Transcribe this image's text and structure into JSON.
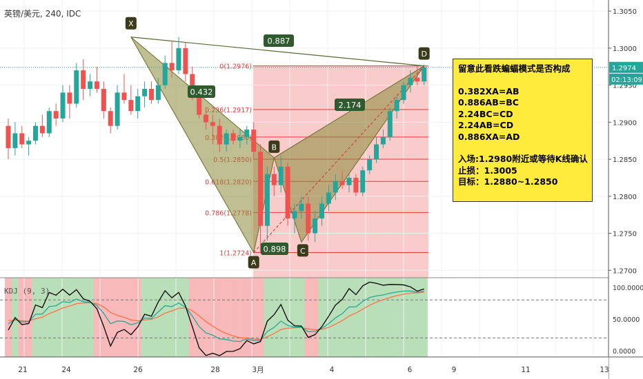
{
  "header": {
    "symbol": "英镑/美元",
    "interval": "240",
    "source": "IDC"
  },
  "price_axis": {
    "ticks": [
      "1.3050",
      "1.3000",
      "1.2950",
      "1.2900",
      "1.2850",
      "1.2800",
      "1.2750",
      "1.2700"
    ],
    "current_price": "1.2974",
    "countdown": "02:13:09"
  },
  "kdj_axis": {
    "ticks": [
      "100.0000",
      "50.0000",
      "0.0000"
    ],
    "label": "KDJ (9, 3)"
  },
  "time_axis": {
    "labels": [
      "21",
      "24",
      "26",
      "28",
      "3月",
      "4",
      "6",
      "9",
      "11",
      "13"
    ]
  },
  "pattern": {
    "points": {
      "X": "X",
      "A": "A",
      "B": "B",
      "C": "C",
      "D": "D"
    },
    "ratios": {
      "xd": "0.887",
      "xab": "0.432",
      "abc": "0.898",
      "bcd": "2.174"
    }
  },
  "fib_levels": [
    {
      "label": "0(1.2976)",
      "price": 1.2976
    },
    {
      "label": "0.236(1.2917)",
      "price": 1.2917
    },
    {
      "label": "0.382(1.2880)",
      "price": 1.288
    },
    {
      "label": "0.5(1.2850)",
      "price": 1.285
    },
    {
      "label": "0.618(1.2820)",
      "price": 1.282
    },
    {
      "label": "0.786(1.2778)",
      "price": 1.2778
    },
    {
      "label": "1(1.2724)",
      "price": 1.2724
    }
  ],
  "note": {
    "title": "留意此看跌蝙蝠模式是否构成",
    "rules": [
      "0.382XA=AB",
      "0.886AB=BC",
      "2.24BC=CD",
      "2.24AB=CD",
      "0.886XA=AD"
    ],
    "entry": "入场:1.2980附近或等待K线确认",
    "stop": "止损：1.3005",
    "target": "目标：1.2880~1.2850"
  },
  "colors": {
    "up": "#26a69a",
    "down": "#ef5350",
    "pattern_fill": "#8a8a3a",
    "fib_zone": "#f7b9b9",
    "kdj_green": "#b9dfb9",
    "kdj_red": "#f7b9b9",
    "k_line": "#000000",
    "d_line": "#26a69a",
    "j_line": "#ff7043"
  },
  "chart_data": {
    "type": "candlestick",
    "series": [
      {
        "name": "英镑/美元",
        "ohlc": [
          [
            1.2895,
            1.2905,
            1.285,
            1.2865
          ],
          [
            1.2865,
            1.29,
            1.2855,
            1.2885
          ],
          [
            1.2885,
            1.2895,
            1.2865,
            1.287
          ],
          [
            1.287,
            1.288,
            1.2855,
            1.2875
          ],
          [
            1.2875,
            1.29,
            1.287,
            1.2895
          ],
          [
            1.2895,
            1.291,
            1.288,
            1.2885
          ],
          [
            1.2885,
            1.292,
            1.288,
            1.2915
          ],
          [
            1.2915,
            1.2925,
            1.2895,
            1.2905
          ],
          [
            1.2905,
            1.295,
            1.29,
            1.294
          ],
          [
            1.294,
            1.295,
            1.2905,
            1.2925
          ],
          [
            1.2925,
            1.298,
            1.292,
            1.297
          ],
          [
            1.297,
            1.2985,
            1.293,
            1.2945
          ],
          [
            1.2945,
            1.2965,
            1.2935,
            1.2955
          ],
          [
            1.2955,
            1.2975,
            1.294,
            1.2945
          ],
          [
            1.2945,
            1.2955,
            1.2905,
            1.2915
          ],
          [
            1.2915,
            1.292,
            1.2885,
            1.2895
          ],
          [
            1.2895,
            1.295,
            1.289,
            1.294
          ],
          [
            1.294,
            1.2965,
            1.2925,
            1.293
          ],
          [
            1.293,
            1.295,
            1.291,
            1.2915
          ],
          [
            1.2915,
            1.2945,
            1.2905,
            1.2935
          ],
          [
            1.2935,
            1.2955,
            1.292,
            1.2945
          ],
          [
            1.2945,
            1.2955,
            1.2925,
            1.293
          ],
          [
            1.293,
            1.296,
            1.2925,
            1.295
          ],
          [
            1.295,
            1.299,
            1.2945,
            1.298
          ],
          [
            1.298,
            1.301,
            1.296,
            1.297
          ],
          [
            1.297,
            1.3015,
            1.2965,
            1.3
          ],
          [
            1.3,
            1.3008,
            1.2955,
            1.2965
          ],
          [
            1.2965,
            1.2975,
            1.293,
            1.2935
          ],
          [
            1.2935,
            1.2945,
            1.2905,
            1.291
          ],
          [
            1.291,
            1.292,
            1.289,
            1.29
          ],
          [
            1.29,
            1.291,
            1.287,
            1.2895
          ],
          [
            1.2895,
            1.2905,
            1.286,
            1.287
          ],
          [
            1.287,
            1.289,
            1.286,
            1.2885
          ],
          [
            1.2885,
            1.289,
            1.287,
            1.2875
          ],
          [
            1.2875,
            1.289,
            1.2865,
            1.288
          ],
          [
            1.288,
            1.2895,
            1.287,
            1.289
          ],
          [
            1.289,
            1.29,
            1.285,
            1.286
          ],
          [
            1.286,
            1.287,
            1.2724,
            1.276
          ],
          [
            1.276,
            1.284,
            1.274,
            1.283
          ],
          [
            1.283,
            1.284,
            1.28,
            1.2815
          ],
          [
            1.2815,
            1.2855,
            1.2805,
            1.284
          ],
          [
            1.284,
            1.2845,
            1.276,
            1.277
          ],
          [
            1.277,
            1.279,
            1.275,
            1.278
          ],
          [
            1.278,
            1.28,
            1.277,
            1.279
          ],
          [
            1.279,
            1.28,
            1.274,
            1.275
          ],
          [
            1.275,
            1.278,
            1.2738,
            1.277
          ],
          [
            1.277,
            1.28,
            1.276,
            1.279
          ],
          [
            1.279,
            1.2815,
            1.278,
            1.2805
          ],
          [
            1.2805,
            1.283,
            1.2795,
            1.282
          ],
          [
            1.282,
            1.2835,
            1.281,
            1.2815
          ],
          [
            1.2815,
            1.283,
            1.2805,
            1.2825
          ],
          [
            1.2825,
            1.283,
            1.28,
            1.2805
          ],
          [
            1.2805,
            1.284,
            1.28,
            1.2835
          ],
          [
            1.2835,
            1.2855,
            1.283,
            1.285
          ],
          [
            1.285,
            1.288,
            1.2845,
            1.287
          ],
          [
            1.287,
            1.289,
            1.2865,
            1.288
          ],
          [
            1.288,
            1.292,
            1.2875,
            1.2915
          ],
          [
            1.2915,
            1.2935,
            1.2905,
            1.293
          ],
          [
            1.293,
            1.2955,
            1.2925,
            1.295
          ],
          [
            1.295,
            1.297,
            1.294,
            1.296
          ],
          [
            1.296,
            1.2976,
            1.295,
            1.2955
          ],
          [
            1.2955,
            1.2978,
            1.295,
            1.2974
          ]
        ]
      }
    ],
    "x_labels": [
      "21",
      "24",
      "26",
      "28",
      "3月",
      "4",
      "6",
      "9",
      "11",
      "13"
    ],
    "y_ticks": [
      1.305,
      1.3,
      1.295,
      1.29,
      1.285,
      1.28,
      1.275,
      1.27
    ],
    "ylim": [
      1.269,
      1.3065
    ],
    "kdj": {
      "params": "9, 3",
      "ylim": [
        -10,
        115
      ]
    }
  }
}
